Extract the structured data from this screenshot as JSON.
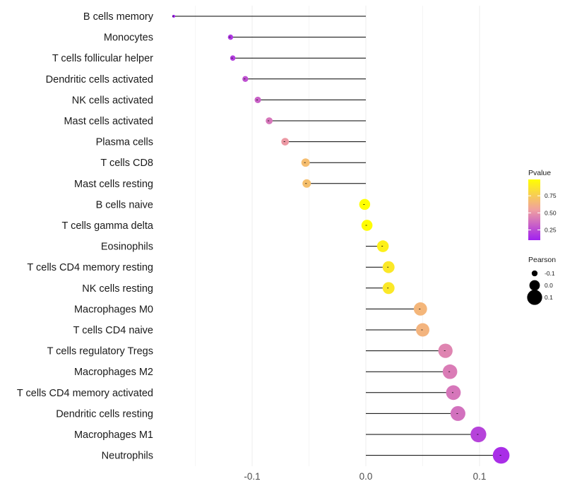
{
  "chart_data": {
    "type": "lollipop",
    "title": "",
    "xlabel": "",
    "ylabel": "",
    "xlim": [
      -0.172,
      0.122
    ],
    "x_ticks": [
      -0.1,
      0.0,
      0.1
    ],
    "x_tick_labels": [
      "-0.1",
      "0.0",
      "0.1"
    ],
    "baseline": 0,
    "categories": [
      "B cells memory",
      "Monocytes",
      "T cells follicular helper",
      "Dendritic cells activated",
      "NK cells activated",
      "Mast cells activated",
      "Plasma cells",
      "T cells CD8",
      "Mast cells resting",
      "B cells naive",
      "T cells gamma delta",
      "Eosinophils",
      "T cells CD4 memory resting",
      "NK cells resting",
      "Macrophages M0",
      "T cells CD4 naive",
      "T cells regulatory  Tregs ",
      "Macrophages M2",
      "T cells CD4 memory activated",
      "Dendritic cells resting",
      "Macrophages M1",
      "Neutrophils"
    ],
    "pearson": [
      -0.169,
      -0.119,
      -0.117,
      -0.106,
      -0.095,
      -0.085,
      -0.071,
      -0.053,
      -0.052,
      -0.001,
      0.001,
      0.015,
      0.02,
      0.02,
      0.048,
      0.05,
      0.07,
      0.074,
      0.077,
      0.081,
      0.099,
      0.119
    ],
    "pvalue": [
      0.1,
      0.18,
      0.2,
      0.27,
      0.33,
      0.4,
      0.52,
      0.68,
      0.69,
      0.99,
      0.98,
      0.92,
      0.88,
      0.88,
      0.65,
      0.64,
      0.45,
      0.42,
      0.4,
      0.38,
      0.22,
      0.15
    ],
    "legend": {
      "color_title": "Pvalue",
      "color_ticks": [
        0.25,
        0.5,
        0.75
      ],
      "color_tick_labels": [
        "0.25",
        "0.50",
        "0.75"
      ],
      "color_range": [
        0.1,
        0.99
      ],
      "colors": [
        "#a020f0",
        "#f0a0a0",
        "#ffff00"
      ],
      "size_title": "Pearson",
      "size_values": [
        -0.1,
        0.0,
        0.1
      ],
      "size_labels": [
        "-0.1",
        "0.0",
        "0.1"
      ],
      "position": "right"
    },
    "grid": true
  }
}
